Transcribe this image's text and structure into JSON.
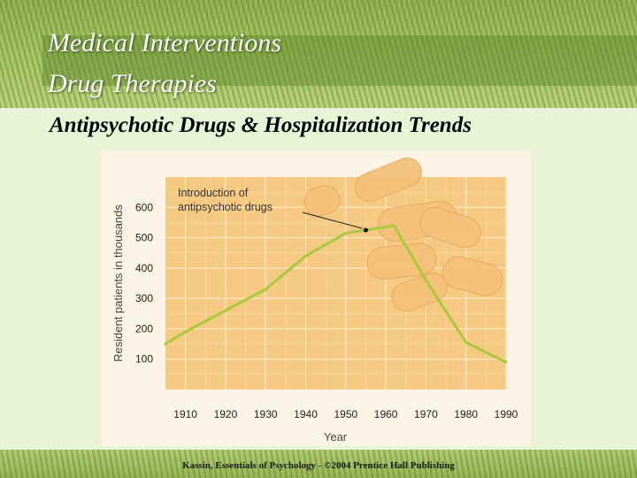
{
  "slide": {
    "title_line1": "Medical Interventions",
    "title_line2": "Drug Therapies",
    "subtitle": "Antipsychotic Drugs & Hospitalization Trends",
    "footer": "Kassin, Essentials of Psychology - ©2004 Prentice Hall Publishing"
  },
  "colors": {
    "plot_background": "#f6c982",
    "grid": "#fbe8c4",
    "line": "#a8c93a",
    "pill": "#f4c07a"
  },
  "chart_data": {
    "type": "line",
    "title": "",
    "xlabel": "Year",
    "ylabel": "Resident patients in thousands",
    "x_ticks": [
      1910,
      1920,
      1930,
      1940,
      1950,
      1960,
      1970,
      1980,
      1990
    ],
    "y_ticks": [
      100,
      200,
      300,
      400,
      500,
      600
    ],
    "xlim": [
      1905,
      1990
    ],
    "ylim": [
      0,
      700
    ],
    "grid": true,
    "series": [
      {
        "x": [
          1905,
          1910,
          1920,
          1930,
          1940,
          1950,
          1955,
          1962,
          1970,
          1980,
          1990
        ],
        "y": [
          150,
          190,
          260,
          330,
          440,
          515,
          525,
          540,
          360,
          155,
          90
        ]
      }
    ],
    "annotations": [
      {
        "text_lines": [
          "Introduction of",
          "antipsychotic drugs"
        ],
        "x": 1955,
        "y": 525
      }
    ]
  }
}
